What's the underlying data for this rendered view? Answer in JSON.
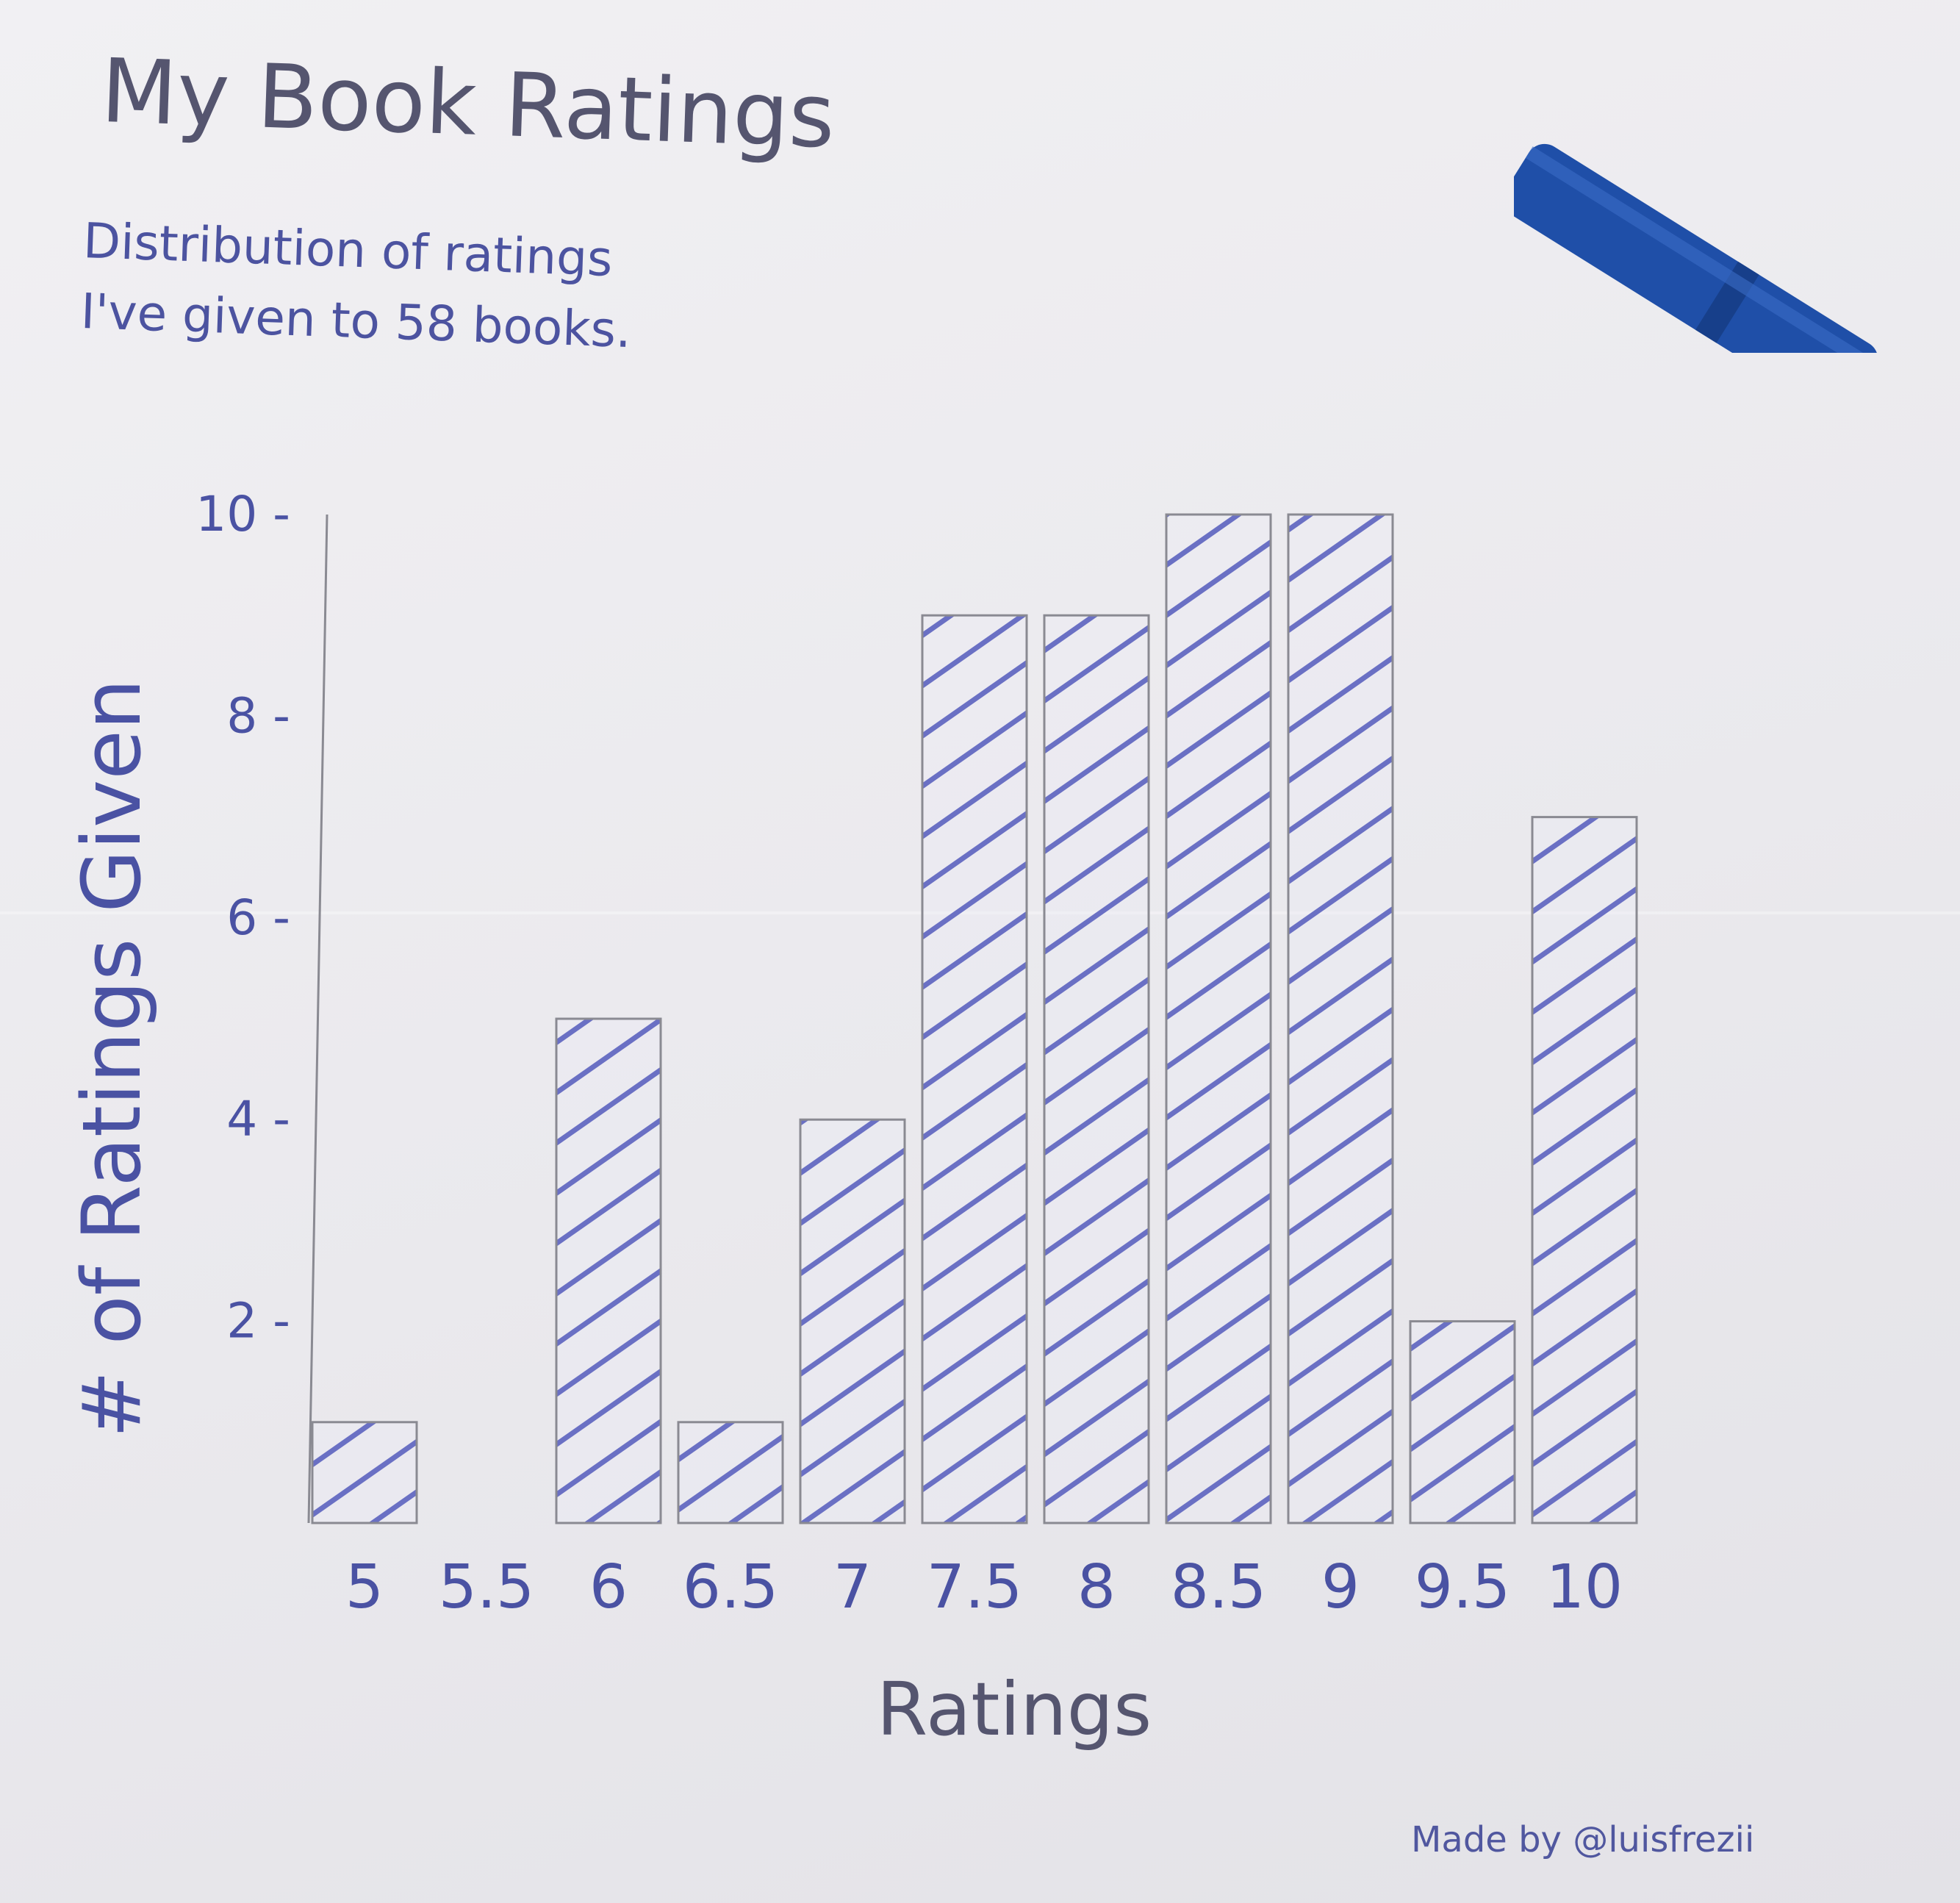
{
  "title": "My Book Ratings",
  "subtitle": "Distribution of ratings\nI've given to 58 books.",
  "credit": "Made by @luisfrezii",
  "colors": {
    "ink": "#4a52a3",
    "hatch": "#6a70c4",
    "pencil": "#8a8a92",
    "marker": "#1f4fa8"
  },
  "chart_data": {
    "type": "bar",
    "xlabel": "Ratings",
    "ylabel": "# of Ratings Given",
    "categories": [
      "5",
      "5.5",
      "6",
      "6.5",
      "7",
      "7.5",
      "8",
      "8.5",
      "9",
      "9.5",
      "10"
    ],
    "values": [
      1,
      0,
      5,
      1,
      4,
      9,
      9,
      10,
      10,
      2,
      7
    ],
    "yticks": [
      "2",
      "4",
      "6",
      "8",
      "10"
    ],
    "ylim": [
      0,
      10
    ],
    "grid": false,
    "legend": "none"
  }
}
